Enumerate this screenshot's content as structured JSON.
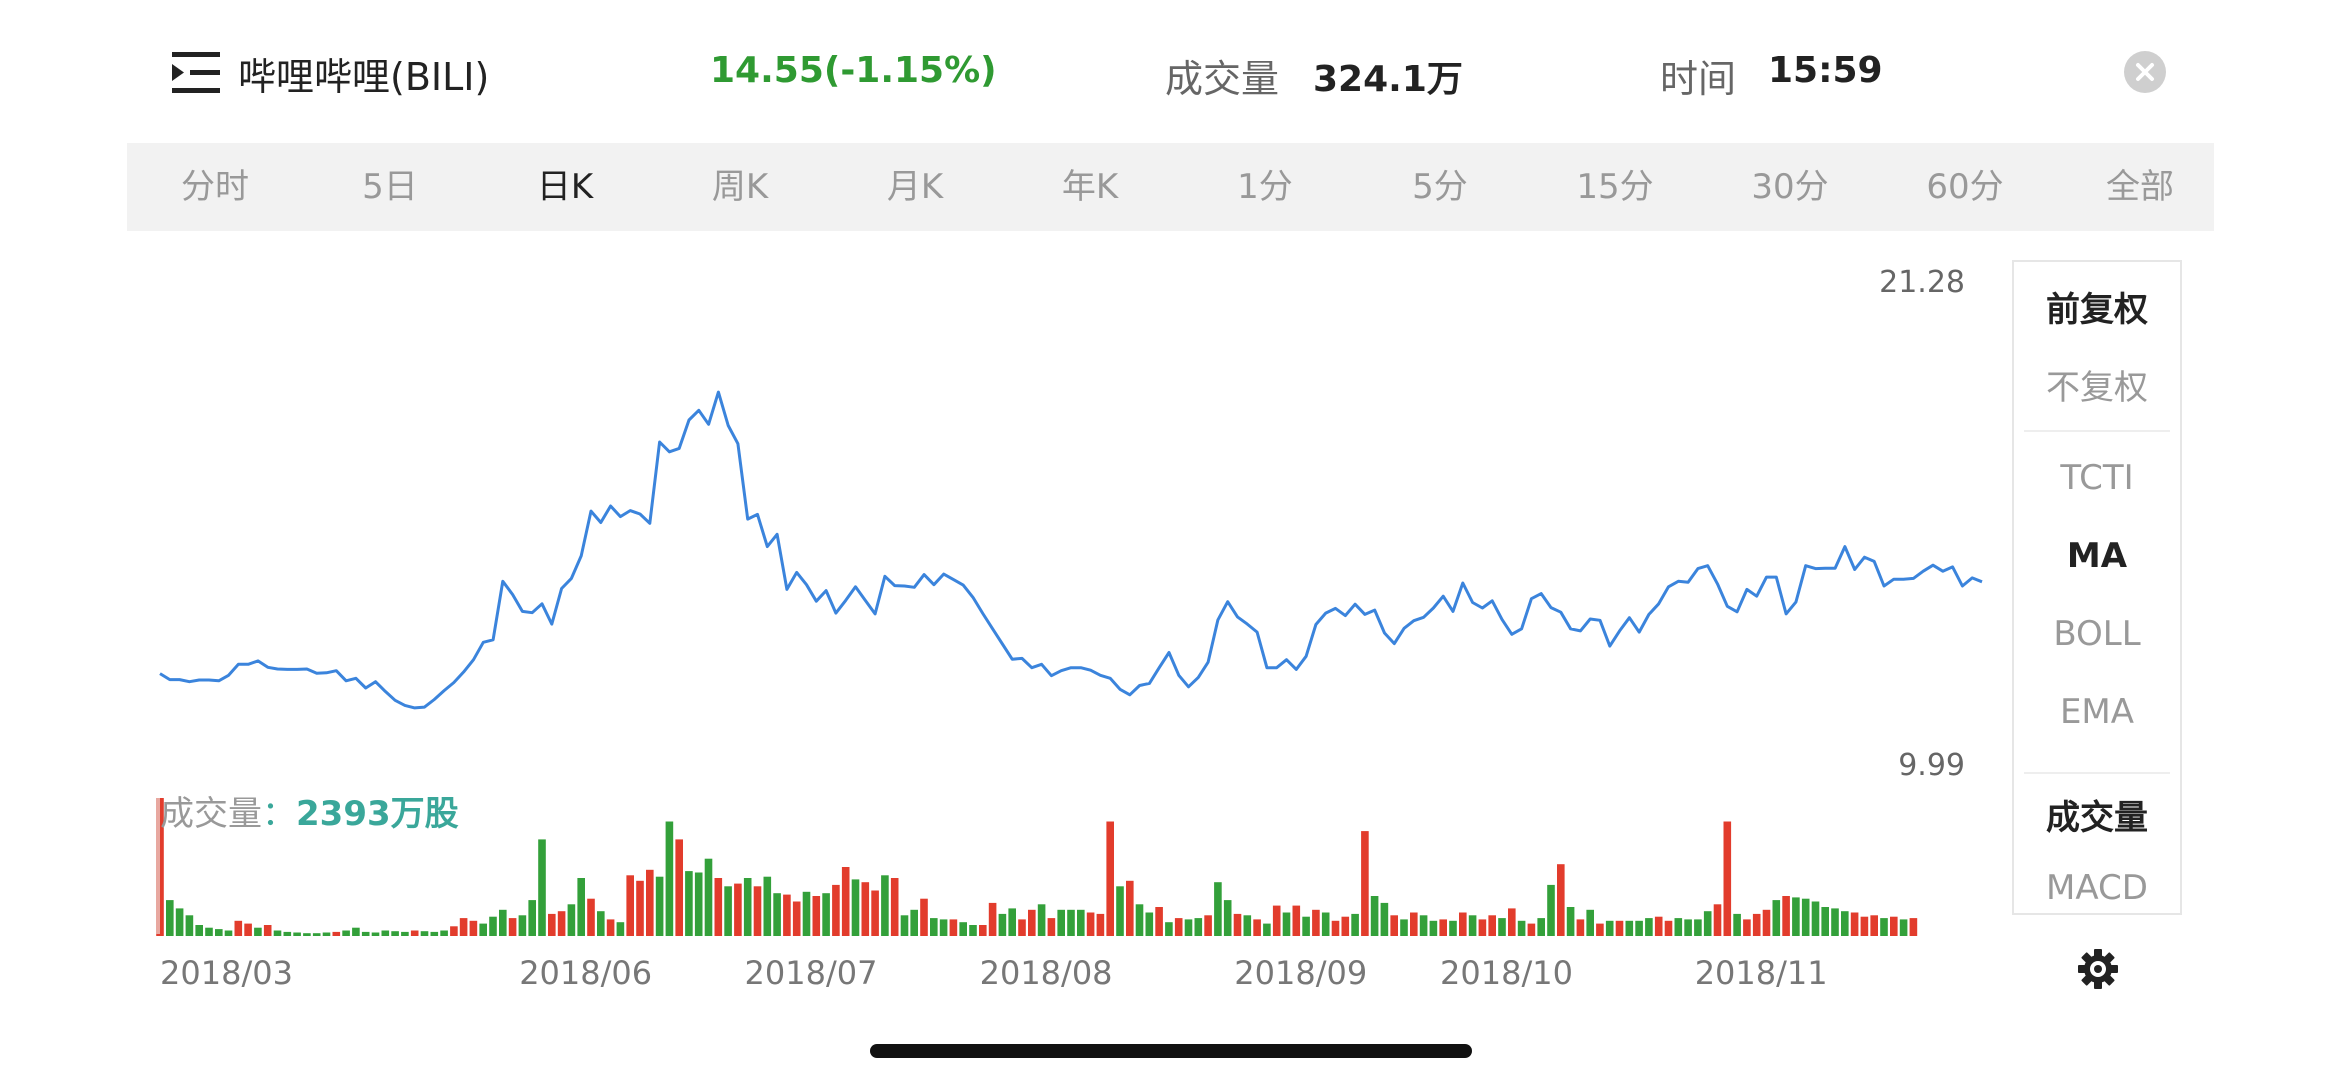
{
  "header": {
    "menu_icon": "list-menu-icon",
    "stock_name": "哔哩哔哩(BILI)",
    "price_change": "14.55(-1.15%)",
    "volume_label": "成交量",
    "volume_value": "324.1万",
    "time_label": "时间",
    "time_value": "15:59",
    "close_icon": "close-icon"
  },
  "tabs": [
    {
      "label": "分时",
      "active": false
    },
    {
      "label": "5日",
      "active": false
    },
    {
      "label": "日K",
      "active": true
    },
    {
      "label": "周K",
      "active": false
    },
    {
      "label": "月K",
      "active": false
    },
    {
      "label": "年K",
      "active": false
    },
    {
      "label": "1分",
      "active": false
    },
    {
      "label": "5分",
      "active": false
    },
    {
      "label": "15分",
      "active": false
    },
    {
      "label": "30分",
      "active": false
    },
    {
      "label": "60分",
      "active": false
    },
    {
      "label": "全部",
      "active": false
    }
  ],
  "side_panel": {
    "items": [
      {
        "label": "前复权",
        "active": true
      },
      {
        "label": "不复权",
        "active": false
      },
      {
        "label": "TCTI",
        "active": false
      },
      {
        "label": "MA",
        "active": true
      },
      {
        "label": "BOLL",
        "active": false
      },
      {
        "label": "EMA",
        "active": false
      },
      {
        "label": "成交量",
        "active": true
      },
      {
        "label": "MACD",
        "active": false
      }
    ],
    "settings_icon": "gear-icon"
  },
  "volume_panel": {
    "label": "成交量",
    "separator": "：",
    "value": "2393万股"
  },
  "chart_data": {
    "type": "line",
    "ylim": [
      9.99,
      21.28
    ],
    "y_tick_labels": [
      "21.28",
      "9.99"
    ],
    "x_tick_labels": [
      "2018/03",
      "2018/06",
      "2018/07",
      "2018/08",
      "2018/09",
      "2018/10",
      "2018/11"
    ],
    "x_tick_index": [
      0,
      43,
      66,
      90,
      116,
      137,
      163
    ],
    "colors": {
      "line": "#3b84dc",
      "up": "#e23c2c",
      "down": "#33a03a"
    },
    "series": [
      {
        "values": [
          12.03,
          11.89,
          11.89,
          11.84,
          11.88,
          11.88,
          11.86,
          11.99,
          12.25,
          12.25,
          12.33,
          12.18,
          12.14,
          12.13,
          12.13,
          12.14,
          12.04,
          12.05,
          12.1,
          11.86,
          11.92,
          11.69,
          11.84,
          11.61,
          11.4,
          11.28,
          11.22,
          11.24,
          11.42,
          11.63,
          11.82,
          12.07,
          12.36,
          12.77,
          12.83,
          14.21,
          13.9,
          13.5,
          13.47,
          13.68,
          13.2,
          14.04,
          14.28,
          14.81,
          15.87,
          15.6,
          15.99,
          15.74,
          15.88,
          15.8,
          15.58,
          17.5,
          17.27,
          17.35,
          18.02,
          18.25,
          17.92,
          18.68,
          17.89,
          17.46,
          15.68,
          15.79,
          15.03,
          15.32,
          14.02,
          14.42,
          14.13,
          13.74,
          13.99,
          13.46,
          13.76,
          14.08,
          13.76,
          13.44,
          14.33,
          14.11,
          14.1,
          14.07,
          14.37,
          14.13,
          14.38,
          14.25,
          14.12,
          13.83,
          13.45,
          13.09,
          12.73,
          12.37,
          12.39,
          12.17,
          12.25,
          11.98,
          12.1,
          12.17,
          12.17,
          12.11,
          11.99,
          11.92,
          11.66,
          11.53,
          11.75,
          11.8,
          12.17,
          12.53,
          11.99,
          11.72,
          11.94,
          12.3,
          13.3,
          13.73,
          13.37,
          13.2,
          13.01,
          12.17,
          12.17,
          12.36,
          12.13,
          12.44,
          13.19,
          13.46,
          13.57,
          13.4,
          13.67,
          13.43,
          13.53,
          12.99,
          12.74,
          13.1,
          13.28,
          13.36,
          13.58,
          13.86,
          13.5,
          14.17,
          13.71,
          13.58,
          13.75,
          13.31,
          12.96,
          13.09,
          13.8,
          13.92,
          13.59,
          13.48,
          13.09,
          13.04,
          13.32,
          13.29,
          12.68,
          13.04,
          13.35,
          13.01,
          13.43,
          13.68,
          14.08,
          14.21,
          14.19,
          14.51,
          14.58,
          14.15,
          13.62,
          13.49,
          14.02,
          13.86,
          14.31,
          14.31,
          13.44,
          13.72,
          14.58,
          14.51,
          14.52,
          14.52,
          15.03,
          14.49,
          14.78,
          14.68,
          14.1,
          14.26,
          14.26,
          14.28,
          14.45,
          14.59,
          14.45,
          14.55,
          14.1,
          14.29,
          14.2
        ]
      }
    ],
    "volume": [
      {
        "values": [
          1000,
          260,
          200,
          150,
          80,
          60,
          50,
          40,
          110,
          90,
          60,
          80,
          40,
          30,
          25,
          20,
          20,
          25,
          30,
          40,
          60,
          30,
          25,
          40,
          35,
          30,
          40,
          35,
          30,
          40,
          70,
          130,
          110,
          90,
          140,
          190,
          130,
          150,
          260,
          700,
          160,
          180,
          230,
          420,
          270,
          180,
          120,
          100,
          440,
          400,
          480,
          430,
          830,
          700,
          470,
          460,
          560,
          420,
          360,
          380,
          420,
          360,
          430,
          310,
          300,
          250,
          320,
          290,
          310,
          370,
          500,
          410,
          390,
          330,
          440,
          420,
          150,
          190,
          270,
          130,
          120,
          120,
          100,
          80,
          80,
          240,
          160,
          200,
          120,
          190,
          230,
          130,
          190,
          190,
          190,
          170,
          160,
          830,
          360,
          400,
          230,
          170,
          210,
          100,
          130,
          120,
          130,
          150,
          390,
          260,
          160,
          150,
          120,
          90,
          220,
          170,
          220,
          140,
          190,
          170,
          110,
          140,
          160,
          760,
          290,
          240,
          150,
          120,
          170,
          150,
          110,
          120,
          110,
          170,
          150,
          120,
          150,
          130,
          200,
          110,
          90,
          130,
          370,
          520,
          210,
          120,
          190,
          90,
          110,
          110,
          110,
          110,
          130,
          140,
          110,
          130,
          120,
          120,
          180,
          230,
          830,
          160,
          120,
          160,
          190,
          260,
          290,
          280,
          270,
          250,
          210,
          200,
          180,
          170,
          140,
          150,
          130,
          140,
          120,
          130
        ],
        "up": [
          1,
          0,
          0,
          0,
          0,
          0,
          0,
          0,
          1,
          1,
          0,
          1,
          0,
          0,
          0,
          0,
          0,
          0,
          1,
          0,
          0,
          0,
          0,
          0,
          0,
          0,
          1,
          0,
          0,
          0,
          1,
          1,
          1,
          0,
          0,
          0,
          1,
          0,
          0,
          0,
          1,
          1,
          0,
          0,
          1,
          0,
          1,
          0,
          1,
          1,
          1,
          0,
          0,
          1,
          0,
          0,
          0,
          1,
          0,
          1,
          0,
          1,
          0,
          0,
          1,
          1,
          0,
          1,
          0,
          1,
          1,
          0,
          1,
          1,
          0,
          1,
          0,
          0,
          1,
          0,
          0,
          1,
          0,
          0,
          1,
          1,
          0,
          0,
          1,
          1,
          0,
          1,
          0,
          0,
          0,
          1,
          1,
          1,
          0,
          1,
          0,
          0,
          1,
          0,
          1,
          0,
          0,
          1,
          0,
          0,
          1,
          0,
          1,
          0,
          1,
          0,
          1,
          0,
          1,
          0,
          1,
          1,
          0,
          1,
          0,
          0,
          1,
          0,
          1,
          0,
          0,
          1,
          0,
          1,
          0,
          1,
          1,
          0,
          1,
          0,
          1,
          0,
          0,
          1,
          0,
          1,
          0,
          1,
          0,
          1,
          0,
          0,
          0,
          1,
          1,
          0,
          0,
          0,
          0,
          1,
          1,
          0,
          1,
          1,
          1,
          0,
          1,
          0,
          0,
          0,
          0,
          0,
          0,
          1,
          1,
          1,
          0,
          1,
          0,
          1,
          0,
          0
        ]
      }
    ]
  }
}
